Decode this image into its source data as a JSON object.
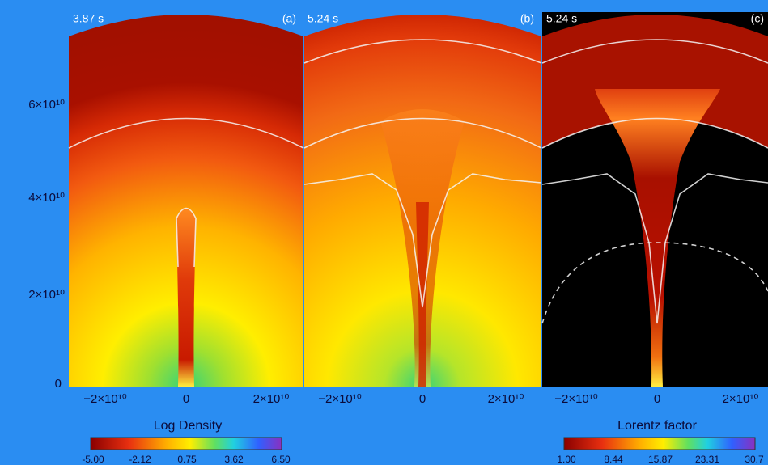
{
  "panels": [
    {
      "time": "3.87 s",
      "tag": "(a)"
    },
    {
      "time": "5.24 s",
      "tag": "(b)"
    },
    {
      "time": "5.24 s",
      "tag": "(c)"
    }
  ],
  "y_axis": {
    "ticks": [
      "0",
      "2×10¹⁰",
      "4×10¹⁰",
      "6×10¹⁰"
    ]
  },
  "x_axis": {
    "ticks": [
      "−2×10¹⁰",
      "0",
      "2×10¹⁰"
    ]
  },
  "colorbars": [
    {
      "title": "Log Density",
      "ticks": [
        "-5.00",
        "-2.12",
        "0.75",
        "3.62",
        "6.50"
      ]
    },
    {
      "title": "Lorentz factor",
      "ticks": [
        "1.00",
        "8.44",
        "15.87",
        "23.31",
        "30.7"
      ]
    }
  ]
}
